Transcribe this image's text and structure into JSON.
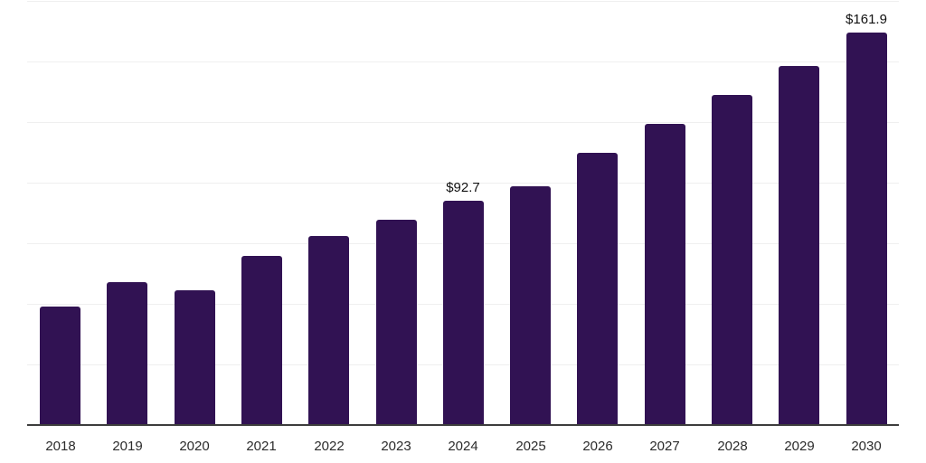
{
  "chart_data": {
    "type": "bar",
    "categories": [
      "2018",
      "2019",
      "2020",
      "2021",
      "2022",
      "2023",
      "2024",
      "2025",
      "2026",
      "2027",
      "2028",
      "2029",
      "2030"
    ],
    "values": [
      48.9,
      59.0,
      55.6,
      69.8,
      78.0,
      84.7,
      92.7,
      98.5,
      112.3,
      124.2,
      136.1,
      148.1,
      161.9
    ],
    "data_labels": {
      "2024": "$92.7",
      "2030": "$161.9"
    },
    "ylim": [
      0,
      175
    ],
    "grid_step": 25,
    "grid": true,
    "legend": false,
    "y_axis_labels_visible": false,
    "bar_color": "#311253",
    "gridline_color": "#efefef",
    "axis_color": "#3d3d3d",
    "tick_color": "#2b2b2b",
    "data_label_color": "#111111"
  }
}
